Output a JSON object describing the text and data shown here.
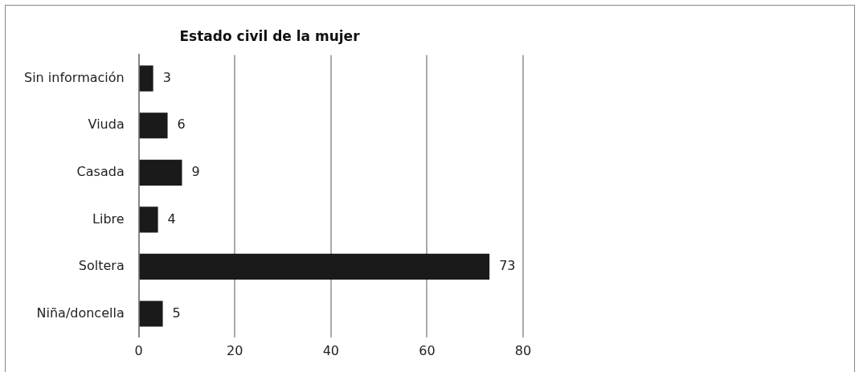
{
  "chart_data": {
    "type": "bar",
    "orientation": "horizontal",
    "title": "Estado civil de la mujer",
    "categories": [
      "Sin información",
      "Viuda",
      "Casada",
      "Libre",
      "Soltera",
      "Niña/doncella"
    ],
    "values": [
      3,
      6,
      9,
      4,
      73,
      5
    ],
    "color": "#1a1a1a",
    "xlim": [
      0,
      80
    ],
    "xticks": [
      0,
      20,
      40,
      60,
      80
    ],
    "grid": "x",
    "data_labels": true
  }
}
